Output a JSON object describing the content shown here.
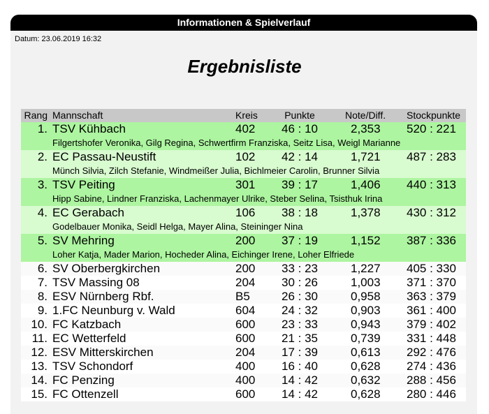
{
  "header": {
    "title": "Informationen & Spielverlauf"
  },
  "date": "Datum: 23.06.2019 16:32",
  "title": "Ergebnisliste",
  "table": {
    "columns": [
      "Rang",
      "Mannschaft",
      "Kreis",
      "Punkte",
      "Note/Diff.",
      "Stockpunkte"
    ],
    "rows": [
      {
        "rank": "1.",
        "team": "TSV Kühbach",
        "kreis": "402",
        "punkte": "46 : 10",
        "note": "2,353",
        "stock": "520 : 221",
        "members": "Filgertshofer Veronika, Gilg Regina, Schwertfirm Franziska, Seitz Lisa, Weigl Marianne"
      },
      {
        "rank": "2.",
        "team": "EC Passau-Neustift",
        "kreis": "102",
        "punkte": "42 : 14",
        "note": "1,721",
        "stock": "487 : 283",
        "members": "Münch Silvia, Zilch Stefanie, Windmeißer Julia, Bichlmeier Carolin, Brunner Silvia"
      },
      {
        "rank": "3.",
        "team": "TSV Peiting",
        "kreis": "301",
        "punkte": "39 : 17",
        "note": "1,406",
        "stock": "440 : 313",
        "members": "Hipp Sabine, Lindner Franziska, Lachenmayer Ulrike, Steber Selina, Tsisthuk Irina"
      },
      {
        "rank": "4.",
        "team": "EC Gerabach",
        "kreis": "106",
        "punkte": "38 : 18",
        "note": "1,378",
        "stock": "430 : 312",
        "members": "Godelbauer Monika, Seidl Helga, Mayer Alina, Steininger Nina"
      },
      {
        "rank": "5.",
        "team": "SV Mehring",
        "kreis": "200",
        "punkte": "37 : 19",
        "note": "1,152",
        "stock": "387 : 336",
        "members": "Loher Katja, Mader Marion, Hocheder Alina, Eichinger Irene, Loher Elfriede"
      },
      {
        "rank": "6.",
        "team": "SV Oberbergkirchen",
        "kreis": "200",
        "punkte": "33 : 23",
        "note": "1,227",
        "stock": "405 : 330"
      },
      {
        "rank": "7.",
        "team": "TSV Massing 08",
        "kreis": "204",
        "punkte": "30 : 26",
        "note": "1,003",
        "stock": "371 : 370"
      },
      {
        "rank": "8.",
        "team": "ESV Nürnberg Rbf.",
        "kreis": "B5",
        "punkte": "26 : 30",
        "note": "0,958",
        "stock": "363 : 379"
      },
      {
        "rank": "9.",
        "team": "1.FC Neunburg v. Wald",
        "kreis": "604",
        "punkte": "24 : 32",
        "note": "0,903",
        "stock": "361 : 400"
      },
      {
        "rank": "10.",
        "team": "FC Katzbach",
        "kreis": "600",
        "punkte": "23 : 33",
        "note": "0,943",
        "stock": "379 : 402"
      },
      {
        "rank": "11.",
        "team": "EC Wetterfeld",
        "kreis": "600",
        "punkte": "21 : 35",
        "note": "0,739",
        "stock": "331 : 448"
      },
      {
        "rank": "12.",
        "team": "ESV Mitterskirchen",
        "kreis": "204",
        "punkte": "17 : 39",
        "note": "0,613",
        "stock": "292 : 476"
      },
      {
        "rank": "13.",
        "team": "TSV Schondorf",
        "kreis": "400",
        "punkte": "16 : 40",
        "note": "0,628",
        "stock": "274 : 436"
      },
      {
        "rank": "14.",
        "team": "FC Penzing",
        "kreis": "400",
        "punkte": "14 : 42",
        "note": "0,632",
        "stock": "288 : 456"
      },
      {
        "rank": "15.",
        "team": "FC Ottenzell",
        "kreis": "600",
        "punkte": "14 : 42",
        "note": "0,628",
        "stock": "280 : 446"
      }
    ]
  }
}
